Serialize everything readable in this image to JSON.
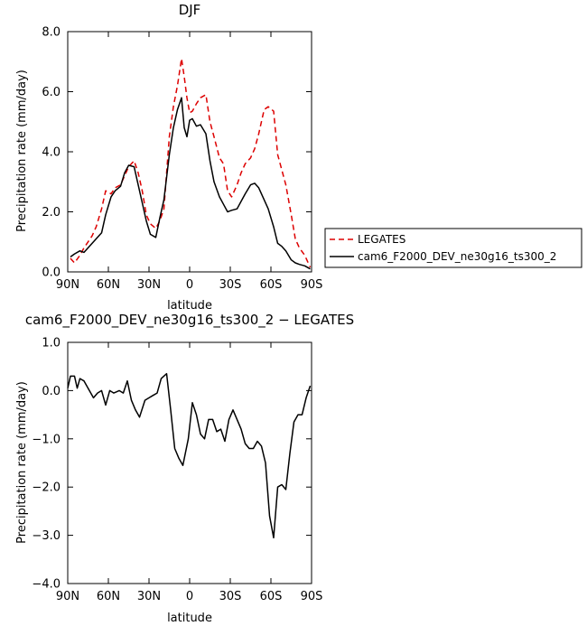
{
  "chart_data": [
    {
      "type": "line",
      "title": "DJF",
      "xlabel": "latitude",
      "ylabel": "Precipitation rate (mm/day)",
      "xlim": [
        90,
        -90
      ],
      "ylim": [
        0,
        8
      ],
      "xticks": [
        90,
        60,
        30,
        0,
        -30,
        -60,
        -90
      ],
      "xtick_labels": [
        "90N",
        "60N",
        "30N",
        "0",
        "30S",
        "60S",
        "90S"
      ],
      "yticks": [
        0,
        2,
        4,
        6,
        8
      ],
      "ytick_labels": [
        "0.0",
        "2.0",
        "4.0",
        "6.0",
        "8.0"
      ],
      "legend_position": "right",
      "series": [
        {
          "name": "LEGATES",
          "color": "#dd0000",
          "style": "dashed",
          "x": [
            88,
            85,
            81,
            78,
            75,
            72,
            69,
            65,
            62,
            58,
            55,
            51,
            48,
            45,
            41,
            38,
            35,
            32,
            29,
            25,
            22,
            19,
            15,
            12,
            9,
            6,
            4,
            2,
            0,
            -2,
            -5,
            -8,
            -12,
            -15,
            -18,
            -22,
            -25,
            -28,
            -31,
            -35,
            -38,
            -41,
            -45,
            -48,
            -51,
            -55,
            -58,
            -62,
            -65,
            -68,
            -71,
            -75,
            -78,
            -81,
            -85,
            -89
          ],
          "y": [
            0.45,
            0.3,
            0.55,
            0.8,
            1.0,
            1.2,
            1.5,
            2.1,
            2.7,
            2.6,
            2.8,
            2.9,
            3.2,
            3.5,
            3.7,
            3.3,
            2.7,
            1.9,
            1.6,
            1.45,
            1.7,
            2.1,
            4.5,
            5.5,
            6.2,
            7.1,
            6.5,
            5.8,
            5.3,
            5.35,
            5.6,
            5.8,
            5.9,
            5.0,
            4.5,
            3.8,
            3.6,
            2.7,
            2.5,
            2.9,
            3.3,
            3.6,
            3.8,
            4.1,
            4.6,
            5.4,
            5.5,
            5.35,
            3.9,
            3.4,
            2.9,
            1.9,
            1.1,
            0.8,
            0.55,
            0.15
          ]
        },
        {
          "name": "cam6_F2000_DEV_ne30g16_ts300_2",
          "color": "#000000",
          "style": "solid",
          "x": [
            88,
            85,
            81,
            78,
            75,
            72,
            69,
            65,
            62,
            58,
            55,
            51,
            48,
            45,
            41,
            38,
            35,
            32,
            29,
            25,
            22,
            19,
            15,
            12,
            9,
            6,
            4,
            2,
            0,
            -2,
            -5,
            -8,
            -12,
            -15,
            -18,
            -22,
            -25,
            -28,
            -31,
            -35,
            -38,
            -41,
            -45,
            -48,
            -51,
            -55,
            -58,
            -62,
            -65,
            -68,
            -71,
            -75,
            -78,
            -81,
            -85,
            -89
          ],
          "y": [
            0.5,
            0.6,
            0.7,
            0.65,
            0.8,
            0.95,
            1.1,
            1.3,
            1.9,
            2.5,
            2.7,
            2.85,
            3.3,
            3.55,
            3.5,
            2.9,
            2.3,
            1.7,
            1.25,
            1.15,
            1.8,
            2.4,
            3.9,
            4.8,
            5.4,
            5.8,
            4.8,
            4.5,
            5.05,
            5.1,
            4.85,
            4.9,
            4.6,
            3.7,
            3.0,
            2.5,
            2.25,
            2.0,
            2.05,
            2.1,
            2.35,
            2.6,
            2.9,
            2.95,
            2.8,
            2.4,
            2.1,
            1.5,
            0.95,
            0.85,
            0.7,
            0.4,
            0.3,
            0.25,
            0.2,
            0.1
          ]
        }
      ]
    },
    {
      "type": "line",
      "title": "cam6_F2000_DEV_ne30g16_ts300_2 − LEGATES",
      "xlabel": "latitude",
      "ylabel": "Precipitation rate (mm/day)",
      "xlim": [
        90,
        -90
      ],
      "ylim": [
        -4,
        1
      ],
      "xticks": [
        90,
        60,
        30,
        0,
        -30,
        -60,
        -90
      ],
      "xtick_labels": [
        "90N",
        "60N",
        "30N",
        "0",
        "30S",
        "60S",
        "90S"
      ],
      "yticks": [
        1,
        0,
        -1,
        -2,
        -3,
        -4
      ],
      "ytick_labels": [
        "1.0",
        "0.0",
        "−1.0",
        "−2.0",
        "−3.0",
        "−4.0"
      ],
      "series": [
        {
          "color": "#000000",
          "style": "solid",
          "x": [
            90,
            88,
            85,
            83,
            81,
            78,
            75,
            71,
            68,
            65,
            62,
            59,
            56,
            52,
            49,
            46,
            43,
            40,
            37,
            33,
            30,
            27,
            24,
            21,
            17,
            14,
            11,
            8,
            5,
            1,
            -2,
            -5,
            -8,
            -11,
            -14,
            -17,
            -20,
            -23,
            -26,
            -29,
            -32,
            -35,
            -38,
            -41,
            -44,
            -47,
            -50,
            -53,
            -56,
            -59,
            -62,
            -65,
            -68,
            -71,
            -74,
            -77,
            -80,
            -83,
            -86,
            -89
          ],
          "y": [
            0.05,
            0.3,
            0.3,
            0.05,
            0.25,
            0.2,
            0.05,
            -0.15,
            -0.05,
            0.0,
            -0.3,
            0.0,
            -0.05,
            0.0,
            -0.05,
            0.2,
            -0.2,
            -0.4,
            -0.55,
            -0.2,
            -0.15,
            -0.1,
            -0.05,
            0.25,
            0.35,
            -0.4,
            -1.2,
            -1.4,
            -1.55,
            -1.0,
            -0.25,
            -0.5,
            -0.9,
            -1.0,
            -0.6,
            -0.6,
            -0.85,
            -0.8,
            -1.05,
            -0.6,
            -0.4,
            -0.6,
            -0.8,
            -1.1,
            -1.2,
            -1.2,
            -1.05,
            -1.15,
            -1.5,
            -2.6,
            -3.05,
            -2.0,
            -1.95,
            -2.05,
            -1.3,
            -0.65,
            -0.5,
            -0.5,
            -0.15,
            0.1
          ]
        }
      ]
    }
  ]
}
